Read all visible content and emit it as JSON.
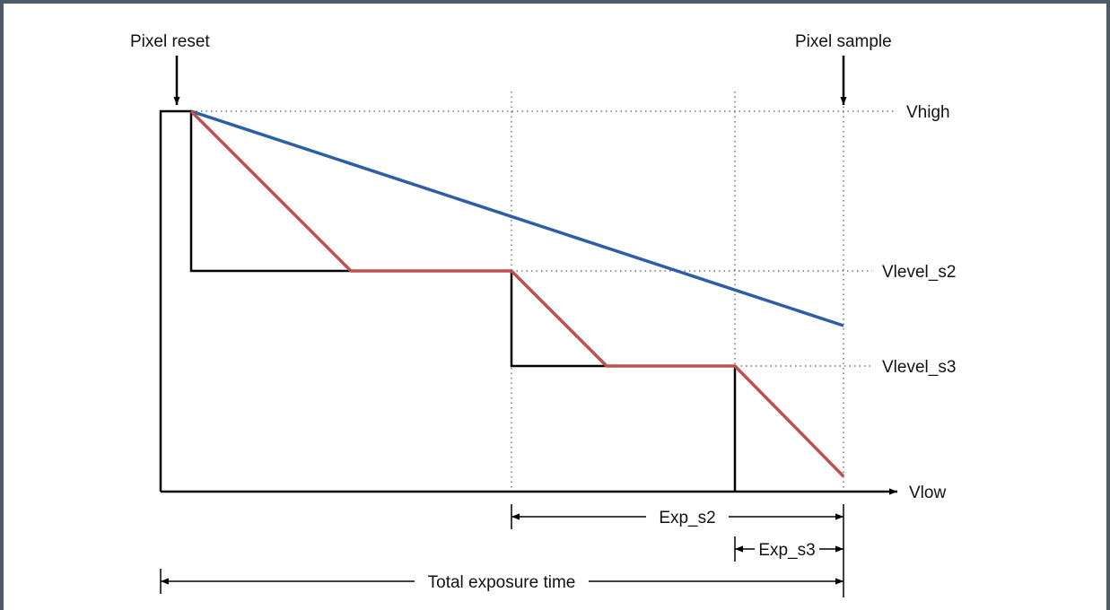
{
  "labels": {
    "pixel_reset": "Pixel reset",
    "pixel_sample": "Pixel sample",
    "vhigh": "Vhigh",
    "vlevel_s2": "Vlevel_s2",
    "vlevel_s3": "Vlevel_s3",
    "vlow": "Vlow",
    "exp_s2": "Exp_s2",
    "exp_s3": "Exp_s3",
    "total_exposure": "Total exposure time"
  },
  "colors": {
    "frame": "#4e5b6b",
    "blue_curve": "#2e5ea8",
    "red_curve": "#c0504d",
    "barrier": "#000000",
    "guide": "#444444"
  }
}
